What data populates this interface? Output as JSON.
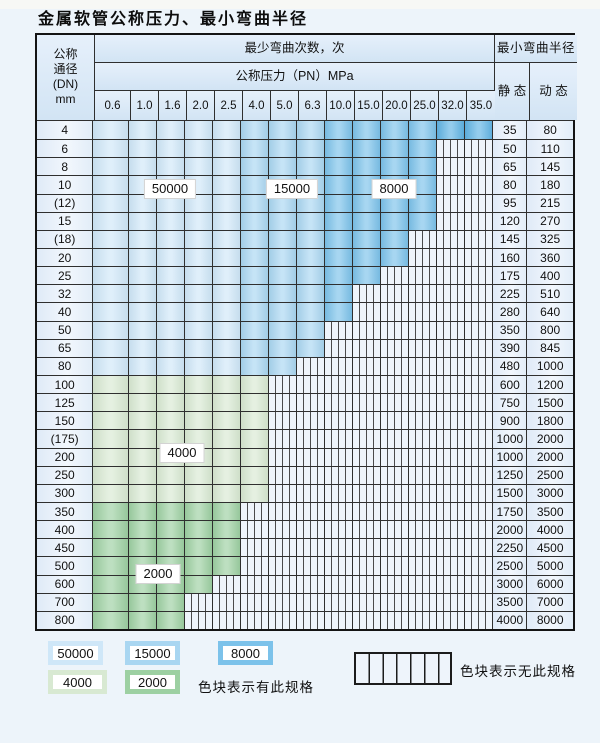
{
  "title": "金属软管公称压力、最小弯曲半径",
  "table": {
    "dn_header_lines": [
      "公称",
      "通径",
      "(DN)",
      "mm"
    ],
    "cycles_header": "最少弯曲次数，次",
    "pn_header": "公称压力（PN）MPa",
    "radius_header": "最小弯曲半径",
    "static_header": "静 态",
    "dynamic_header": "动 态",
    "pn_values": [
      "0.6",
      "1.0",
      "1.6",
      "2.0",
      "2.5",
      "4.0",
      "5.0",
      "6.3",
      "10.0",
      "15.0",
      "20.0",
      "25.0",
      "32.0",
      "35.0"
    ],
    "rows": [
      {
        "dn": "4",
        "colored": 14,
        "region": "blue",
        "static": "35",
        "dynamic": "80"
      },
      {
        "dn": "6",
        "colored": 12,
        "region": "blue",
        "static": "50",
        "dynamic": "110"
      },
      {
        "dn": "8",
        "colored": 12,
        "region": "blue",
        "static": "65",
        "dynamic": "145"
      },
      {
        "dn": "10",
        "colored": 12,
        "region": "blue",
        "static": "80",
        "dynamic": "180"
      },
      {
        "dn": "(12)",
        "colored": 12,
        "region": "blue",
        "static": "95",
        "dynamic": "215"
      },
      {
        "dn": "15",
        "colored": 12,
        "region": "blue",
        "static": "120",
        "dynamic": "270"
      },
      {
        "dn": "(18)",
        "colored": 11,
        "region": "blue",
        "static": "145",
        "dynamic": "325"
      },
      {
        "dn": "20",
        "colored": 11,
        "region": "blue",
        "static": "160",
        "dynamic": "360"
      },
      {
        "dn": "25",
        "colored": 10,
        "region": "blue",
        "static": "175",
        "dynamic": "400"
      },
      {
        "dn": "32",
        "colored": 9,
        "region": "blue",
        "static": "225",
        "dynamic": "510"
      },
      {
        "dn": "40",
        "colored": 9,
        "region": "blue",
        "static": "280",
        "dynamic": "640"
      },
      {
        "dn": "50",
        "colored": 8,
        "region": "blue",
        "static": "350",
        "dynamic": "800"
      },
      {
        "dn": "65",
        "colored": 8,
        "region": "blue",
        "static": "390",
        "dynamic": "845"
      },
      {
        "dn": "80",
        "colored": 7,
        "region": "blue",
        "static": "480",
        "dynamic": "1000"
      },
      {
        "dn": "100",
        "colored": 6,
        "region": "green1",
        "static": "600",
        "dynamic": "1200"
      },
      {
        "dn": "125",
        "colored": 6,
        "region": "green1",
        "static": "750",
        "dynamic": "1500"
      },
      {
        "dn": "150",
        "colored": 6,
        "region": "green1",
        "static": "900",
        "dynamic": "1800"
      },
      {
        "dn": "(175)",
        "colored": 6,
        "region": "green1",
        "static": "1000",
        "dynamic": "2000"
      },
      {
        "dn": "200",
        "colored": 6,
        "region": "green1",
        "static": "1000",
        "dynamic": "2000"
      },
      {
        "dn": "250",
        "colored": 6,
        "region": "green1",
        "static": "1250",
        "dynamic": "2500"
      },
      {
        "dn": "300",
        "colored": 6,
        "region": "green1",
        "static": "1500",
        "dynamic": "3000"
      },
      {
        "dn": "350",
        "colored": 5,
        "region": "green2",
        "static": "1750",
        "dynamic": "3500"
      },
      {
        "dn": "400",
        "colored": 5,
        "region": "green2",
        "static": "2000",
        "dynamic": "4000"
      },
      {
        "dn": "450",
        "colored": 5,
        "region": "green2",
        "static": "2250",
        "dynamic": "4500"
      },
      {
        "dn": "500",
        "colored": 5,
        "region": "green2",
        "static": "2500",
        "dynamic": "5000"
      },
      {
        "dn": "600",
        "colored": 4,
        "region": "green2",
        "static": "3000",
        "dynamic": "6000"
      },
      {
        "dn": "700",
        "colored": 3,
        "region": "green2",
        "static": "3500",
        "dynamic": "7000"
      },
      {
        "dn": "800",
        "colored": 3,
        "region": "green2",
        "static": "4000",
        "dynamic": "8000"
      }
    ]
  },
  "cycle_labels": [
    "50000",
    "15000",
    "8000",
    "4000",
    "2000"
  ],
  "legend": {
    "items": [
      "50000",
      "15000",
      "8000",
      "4000",
      "2000"
    ],
    "has_spec_text": "色块表示有此规格",
    "no_spec_text": "色块表示无此规格"
  },
  "colors": {
    "blue1": "#cfe7f8",
    "blue2": "#a9d6f1",
    "blue3": "#7cc2ea",
    "blue4": "#5fb3e4",
    "green1": "#d8e9d2",
    "green2": "#9dd0a2",
    "hdr": "#dcebf8",
    "side": "#e7f0fa",
    "nospec": "#eef4fb",
    "grid": "#2f2f2f",
    "pagebg": "#edf4fa"
  },
  "chart_data": {
    "type": "heatmap",
    "title": "金属软管公称压力、最小弯曲半径",
    "x_axis_label": "公称压力（PN）MPa",
    "y_axis_label": "公称通径 (DN) mm",
    "pn_columns": [
      0.6,
      1.0,
      1.6,
      2.0,
      2.5,
      4.0,
      5.0,
      6.3,
      10.0,
      15.0,
      20.0,
      25.0,
      32.0,
      35.0
    ],
    "legend_note_available": "色块表示有此规格",
    "legend_note_unavailable": "色块表示无此规格",
    "cycle_regions": [
      {
        "min_bend_cycles": 50000,
        "dn_rows": "4–80",
        "pn_columns": [
          0.6,
          1.0,
          1.6,
          2.0,
          2.5
        ]
      },
      {
        "min_bend_cycles": 15000,
        "dn_rows": "4–80",
        "pn_columns": [
          4.0,
          5.0,
          6.3
        ]
      },
      {
        "min_bend_cycles": 8000,
        "dn_rows": "4–80",
        "pn_columns": [
          10.0,
          15.0,
          20.0,
          25.0,
          32.0,
          35.0
        ]
      },
      {
        "min_bend_cycles": 4000,
        "dn_rows": "100–300",
        "pn_columns": [
          0.6,
          1.0,
          1.6,
          2.0,
          2.5,
          4.0
        ]
      },
      {
        "min_bend_cycles": 2000,
        "dn_rows": "350–800",
        "pn_columns": [
          0.6,
          1.0,
          1.6,
          2.0,
          2.5
        ]
      }
    ],
    "rows": [
      {
        "dn": "4",
        "max_pn": 35.0,
        "static_radius": 35,
        "dynamic_radius": 80
      },
      {
        "dn": "6",
        "max_pn": 25.0,
        "static_radius": 50,
        "dynamic_radius": 110
      },
      {
        "dn": "8",
        "max_pn": 25.0,
        "static_radius": 65,
        "dynamic_radius": 145
      },
      {
        "dn": "10",
        "max_pn": 25.0,
        "static_radius": 80,
        "dynamic_radius": 180
      },
      {
        "dn": "(12)",
        "max_pn": 25.0,
        "static_radius": 95,
        "dynamic_radius": 215
      },
      {
        "dn": "15",
        "max_pn": 25.0,
        "static_radius": 120,
        "dynamic_radius": 270
      },
      {
        "dn": "(18)",
        "max_pn": 20.0,
        "static_radius": 145,
        "dynamic_radius": 325
      },
      {
        "dn": "20",
        "max_pn": 20.0,
        "static_radius": 160,
        "dynamic_radius": 360
      },
      {
        "dn": "25",
        "max_pn": 15.0,
        "static_radius": 175,
        "dynamic_radius": 400
      },
      {
        "dn": "32",
        "max_pn": 10.0,
        "static_radius": 225,
        "dynamic_radius": 510
      },
      {
        "dn": "40",
        "max_pn": 10.0,
        "static_radius": 280,
        "dynamic_radius": 640
      },
      {
        "dn": "50",
        "max_pn": 6.3,
        "static_radius": 350,
        "dynamic_radius": 800
      },
      {
        "dn": "65",
        "max_pn": 6.3,
        "static_radius": 390,
        "dynamic_radius": 845
      },
      {
        "dn": "80",
        "max_pn": 5.0,
        "static_radius": 480,
        "dynamic_radius": 1000
      },
      {
        "dn": "100",
        "max_pn": 4.0,
        "static_radius": 600,
        "dynamic_radius": 1200
      },
      {
        "dn": "125",
        "max_pn": 4.0,
        "static_radius": 750,
        "dynamic_radius": 1500
      },
      {
        "dn": "150",
        "max_pn": 4.0,
        "static_radius": 900,
        "dynamic_radius": 1800
      },
      {
        "dn": "(175)",
        "max_pn": 4.0,
        "static_radius": 1000,
        "dynamic_radius": 2000
      },
      {
        "dn": "200",
        "max_pn": 4.0,
        "static_radius": 1000,
        "dynamic_radius": 2000
      },
      {
        "dn": "250",
        "max_pn": 4.0,
        "static_radius": 1250,
        "dynamic_radius": 2500
      },
      {
        "dn": "300",
        "max_pn": 4.0,
        "static_radius": 1500,
        "dynamic_radius": 3000
      },
      {
        "dn": "350",
        "max_pn": 2.5,
        "static_radius": 1750,
        "dynamic_radius": 3500
      },
      {
        "dn": "400",
        "max_pn": 2.5,
        "static_radius": 2000,
        "dynamic_radius": 4000
      },
      {
        "dn": "450",
        "max_pn": 2.5,
        "static_radius": 2250,
        "dynamic_radius": 4500
      },
      {
        "dn": "500",
        "max_pn": 2.5,
        "static_radius": 2500,
        "dynamic_radius": 5000
      },
      {
        "dn": "600",
        "max_pn": 2.0,
        "static_radius": 3000,
        "dynamic_radius": 6000
      },
      {
        "dn": "700",
        "max_pn": 1.6,
        "static_radius": 3500,
        "dynamic_radius": 7000
      },
      {
        "dn": "800",
        "max_pn": 1.6,
        "static_radius": 4000,
        "dynamic_radius": 8000
      }
    ]
  }
}
